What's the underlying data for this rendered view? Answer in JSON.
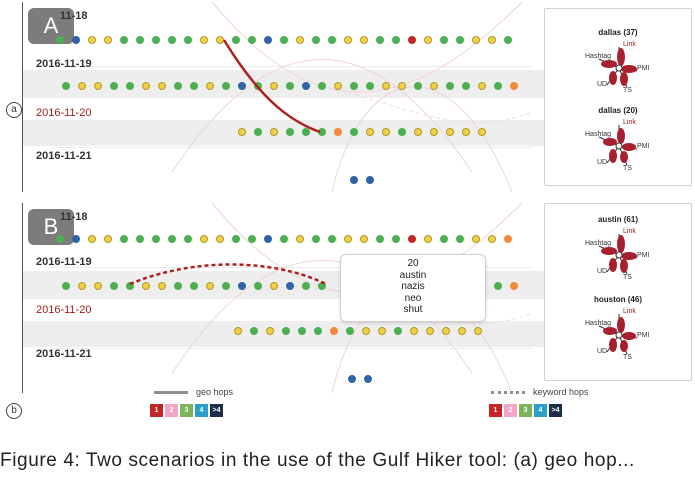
{
  "panels": [
    {
      "id": "a",
      "badge": "A",
      "side_label": "a",
      "dates": [
        "11-18",
        "2016-11-19",
        "2016-11-20",
        "2016-11-21"
      ],
      "side_panel": {
        "entries": [
          {
            "title": "dallas (37)",
            "labels": [
              "Link",
              "Hashtag",
              "PMI",
              "UD",
              "TS"
            ]
          },
          {
            "title": "dallas (20)",
            "labels": [
              "Link",
              "Hashtag",
              "PMI",
              "UD",
              "TS"
            ]
          }
        ]
      }
    },
    {
      "id": "b",
      "badge": "B",
      "side_label": "b",
      "dates": [
        "11-18",
        "2016-11-19",
        "2016-11-20",
        "2016-11-21"
      ],
      "side_panel": {
        "entries": [
          {
            "title": "austin (61)",
            "labels": [
              "Link",
              "Hashtag",
              "PMI",
              "UD",
              "TS"
            ]
          },
          {
            "title": "houston (46)",
            "labels": [
              "Link",
              "Hashtag",
              "PMI",
              "UD",
              "TS"
            ]
          }
        ]
      },
      "tooltip": {
        "lines": [
          "20",
          "austin",
          "nazis",
          "neo",
          "shut"
        ]
      }
    }
  ],
  "legend": {
    "geo_label": "geo hops",
    "keyword_label": "keyword hops",
    "swatches": [
      {
        "label": "1",
        "color": "#c42525"
      },
      {
        "label": "2",
        "color": "#f2a7c6"
      },
      {
        "label": "3",
        "color": "#7fb35a"
      },
      {
        "label": "4",
        "color": "#2aa0c9"
      },
      {
        "label": ">4",
        "color": "#1c2f4a"
      }
    ]
  },
  "caption": "Figure 4: Two scenarios in the use of the Gulf Hiker tool: (a) geo hop..."
}
